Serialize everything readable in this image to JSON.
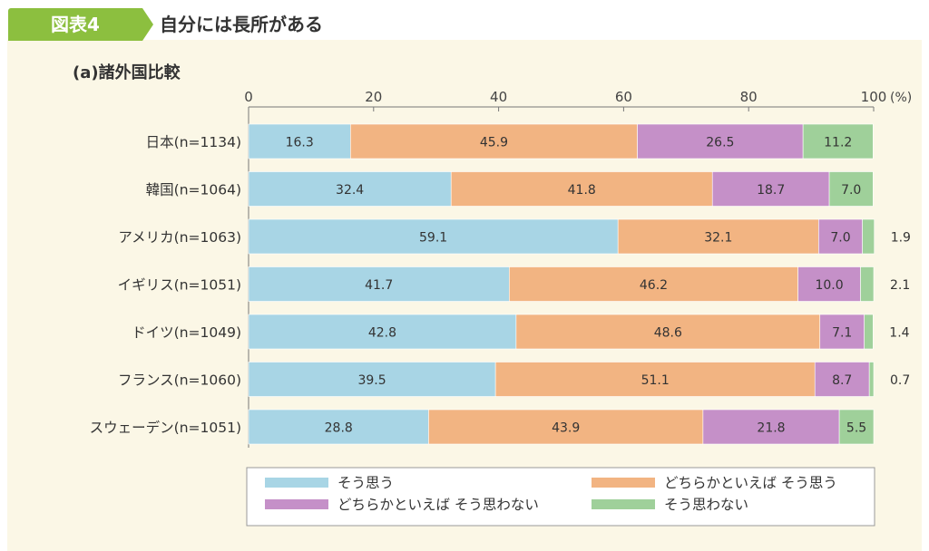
{
  "header": {
    "figure_label": "図表4",
    "figure_title": "自分には長所がある"
  },
  "subtitle": "(a)諸外国比較",
  "colors": {
    "panel_bg": "#fbf7e6",
    "label_bg": "#8cbf3f",
    "series": [
      "#a8d5e5",
      "#f2b482",
      "#c590c8",
      "#9fd09a"
    ]
  },
  "chart_data": {
    "type": "bar",
    "orientation": "horizontal",
    "stacked": true,
    "categories": [
      "日本(n=1134)",
      "韓国(n=1064)",
      "アメリカ(n=1063)",
      "イギリス(n=1051)",
      "ドイツ(n=1049)",
      "フランス(n=1060)",
      "スウェーデン(n=1051)"
    ],
    "series": [
      {
        "name": "そう思う",
        "values": [
          16.3,
          32.4,
          59.1,
          41.7,
          42.8,
          39.5,
          28.8
        ]
      },
      {
        "name": "どちらかといえば そう思う",
        "values": [
          45.9,
          41.8,
          32.1,
          46.2,
          48.6,
          51.1,
          43.9
        ]
      },
      {
        "name": "どちらかといえば そう思わない",
        "values": [
          26.5,
          18.7,
          7.0,
          10.0,
          7.1,
          8.7,
          21.8
        ]
      },
      {
        "name": "そう思わない",
        "values": [
          11.2,
          7.0,
          1.9,
          2.1,
          1.4,
          0.7,
          5.5
        ]
      }
    ],
    "xlim": [
      0,
      100
    ],
    "xticks": [
      0,
      20,
      40,
      60,
      80,
      100
    ],
    "unit": "(%)",
    "grid": false,
    "legend_position": "bottom"
  }
}
